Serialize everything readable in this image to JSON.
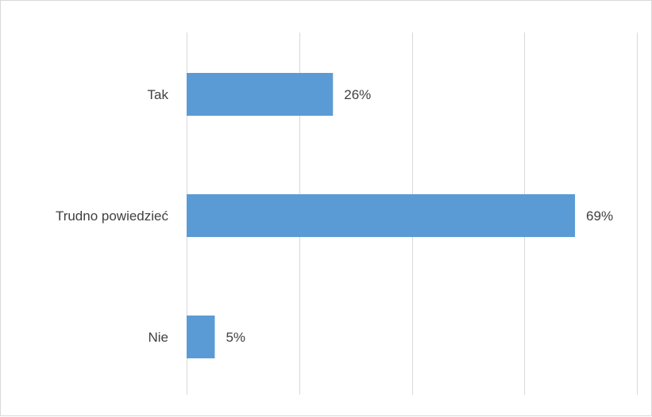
{
  "chart_data": {
    "type": "bar",
    "orientation": "horizontal",
    "categories": [
      "Tak",
      "Trudno powiedzieć",
      "Nie"
    ],
    "values": [
      26,
      69,
      5
    ],
    "value_labels": [
      "26%",
      "69%",
      "5%"
    ],
    "xlim": [
      0,
      80
    ],
    "grid": true,
    "colors": {
      "bar": "#5b9bd5",
      "grid": "#d9d9d9",
      "text": "#404040"
    }
  }
}
